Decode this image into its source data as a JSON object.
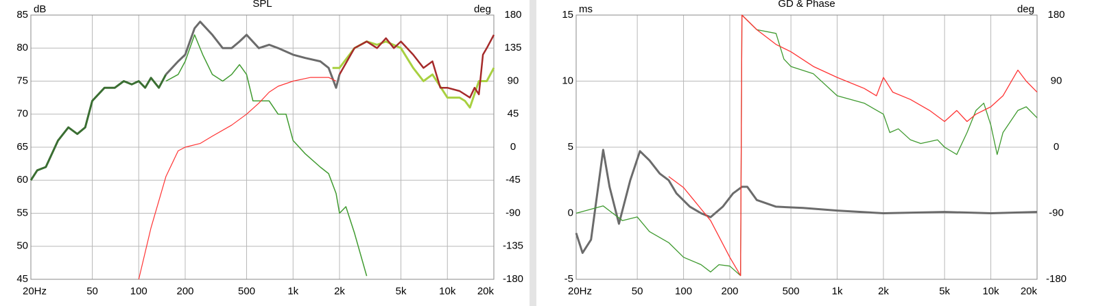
{
  "chart_data": [
    {
      "type": "line",
      "title": "SPL",
      "y_label": "dB",
      "y2_label": "deg",
      "x_log": true,
      "grid": true,
      "xlim": [
        20,
        20000
      ],
      "ylim": [
        45,
        85
      ],
      "y2lim": [
        -180,
        180
      ],
      "xticks": [
        {
          "value": 20,
          "label": "20Hz"
        },
        50,
        100,
        200,
        500,
        {
          "value": 1000,
          "label": "1k"
        },
        {
          "value": 2000,
          "label": "2k"
        },
        {
          "value": 5000,
          "label": "5k"
        },
        {
          "value": 10000,
          "label": "10k"
        },
        {
          "value": 20000,
          "label": "20k"
        }
      ],
      "yticks": [
        45,
        50,
        55,
        60,
        65,
        70,
        75,
        80,
        85
      ],
      "y2ticks": [
        -180,
        -135,
        -90,
        -45,
        0,
        45,
        90,
        135,
        180
      ],
      "series": [
        {
          "color": "#3f9a2f",
          "line_width": 1.5,
          "x": [
            150,
            180,
            200,
            230,
            260,
            300,
            350,
            400,
            450,
            500,
            550,
            700,
            800,
            900,
            1000,
            1200,
            1500,
            1700,
            1900,
            2000,
            2200,
            2500,
            3000
          ],
          "values": [
            75,
            76,
            78,
            82,
            79,
            76,
            75,
            76,
            77.5,
            76,
            72,
            72,
            70,
            70,
            66,
            64,
            62,
            61,
            58,
            55,
            56,
            52,
            45.5
          ]
        },
        {
          "color": "#3a6e32",
          "line_width": 3,
          "x": [
            20,
            22,
            25,
            30,
            35,
            40,
            45,
            50,
            60,
            70,
            80,
            90,
            100,
            110,
            120,
            135,
            150
          ],
          "values": [
            60,
            61.5,
            62,
            66,
            68,
            67,
            68,
            72,
            74,
            74,
            75,
            74.5,
            75,
            74,
            75.5,
            74,
            76
          ]
        },
        {
          "color": "#6b6b6b",
          "line_width": 3,
          "x": [
            150,
            180,
            200,
            230,
            250,
            300,
            350,
            400,
            450,
            500,
            600,
            700,
            800,
            1000,
            1200,
            1500,
            1700,
            1900,
            2000
          ],
          "values": [
            76,
            78,
            79,
            83,
            84,
            82,
            80,
            80,
            81,
            82,
            80,
            80.5,
            80,
            79,
            78.5,
            78,
            77,
            74,
            76
          ]
        },
        {
          "color": "#a8d040",
          "line_width": 3,
          "x": [
            1800,
            2000,
            2500,
            3000,
            3500,
            4000,
            5000,
            6000,
            7000,
            8000,
            10000,
            12000,
            13000,
            14000,
            16000,
            18000,
            20000
          ],
          "values": [
            77,
            77,
            80,
            81,
            80.5,
            81,
            80,
            77,
            75,
            76,
            72.5,
            72.5,
            72,
            71,
            75,
            75,
            77
          ]
        },
        {
          "color": "#a52a2a",
          "line_width": 2.5,
          "x": [
            2000,
            2500,
            3000,
            3500,
            4000,
            4500,
            5000,
            6000,
            7000,
            8000,
            9000,
            10000,
            12000,
            14000,
            15000,
            16000,
            17000,
            18000,
            20000
          ],
          "values": [
            76,
            80,
            81,
            80,
            81.5,
            80,
            81,
            79,
            77,
            78,
            74,
            74,
            73.5,
            72.5,
            74,
            73,
            79,
            80,
            82
          ]
        },
        {
          "color": "#ff3333",
          "line_width": 1.2,
          "axis": "y2",
          "x": [
            100,
            120,
            150,
            180,
            200,
            250,
            300,
            400,
            500,
            600,
            700,
            800,
            1000,
            1300,
            1700,
            1900
          ],
          "values": [
            -180,
            -110,
            -40,
            -5,
            0,
            5,
            15,
            30,
            45,
            60,
            75,
            83,
            90,
            95,
            95,
            90
          ]
        }
      ]
    },
    {
      "type": "line",
      "title": "GD & Phase",
      "y_label": "ms",
      "y2_label": "deg",
      "x_log": true,
      "grid": true,
      "xlim": [
        20,
        20000
      ],
      "ylim": [
        -5,
        15
      ],
      "y2lim": [
        -180,
        180
      ],
      "xticks": [
        {
          "value": 20,
          "label": "20Hz"
        },
        50,
        100,
        200,
        500,
        {
          "value": 1000,
          "label": "1k"
        },
        {
          "value": 2000,
          "label": "2k"
        },
        {
          "value": 5000,
          "label": "5k"
        },
        {
          "value": 10000,
          "label": "10k"
        },
        {
          "value": 20000,
          "label": "20k"
        }
      ],
      "yticks": [
        -5,
        0,
        5,
        10,
        15
      ],
      "y2ticks": [
        -180,
        -90,
        0,
        90,
        180
      ],
      "series": [
        {
          "color": "#6b6b6b",
          "line_width": 3,
          "x": [
            20,
            22,
            25,
            30,
            33,
            38,
            45,
            52,
            60,
            70,
            80,
            90,
            110,
            130,
            150,
            180,
            210,
            240,
            260,
            300,
            400,
            600,
            1000,
            2000,
            5000,
            10000,
            20000
          ],
          "values": [
            -1.5,
            -3,
            -2,
            4.8,
            2,
            -0.8,
            2.5,
            4.7,
            4,
            3,
            2.5,
            1.5,
            0.5,
            0,
            -0.3,
            0.5,
            1.5,
            2,
            2,
            1,
            0.5,
            0.4,
            0.2,
            0,
            0.1,
            0,
            0.1
          ]
        },
        {
          "color": "#3f9a2f",
          "line_width": 1.3,
          "axis": "y2",
          "x": [
            20,
            30,
            40,
            50,
            60,
            80,
            100,
            130,
            150,
            170,
            200,
            235,
            240,
            300,
            400,
            450,
            500,
            700,
            1000,
            1500,
            2000,
            2200,
            2500,
            3000,
            3500,
            4500,
            5000,
            6000,
            7000,
            8000,
            9000,
            10000,
            11000,
            12000,
            15000,
            17000,
            20000
          ],
          "values": [
            -90,
            -80,
            -100,
            -95,
            -115,
            -130,
            -150,
            -160,
            -170,
            -160,
            -162,
            -175,
            180,
            160,
            155,
            120,
            110,
            100,
            70,
            60,
            45,
            20,
            25,
            10,
            5,
            10,
            0,
            -10,
            20,
            50,
            60,
            30,
            -10,
            20,
            50,
            55,
            40
          ]
        },
        {
          "color": "#ff3333",
          "line_width": 1.3,
          "axis": "y2",
          "x": [
            80,
            100,
            150,
            200,
            235,
            240,
            300,
            400,
            500,
            700,
            1000,
            1500,
            1800,
            2000,
            2300,
            3000,
            4000,
            5000,
            6000,
            7000,
            8000,
            10000,
            12000,
            15000,
            17000,
            20000
          ],
          "values": [
            -40,
            -55,
            -100,
            -150,
            -175,
            180,
            160,
            140,
            130,
            110,
            95,
            80,
            70,
            95,
            75,
            65,
            50,
            35,
            50,
            35,
            45,
            55,
            70,
            105,
            90,
            75
          ]
        }
      ]
    }
  ]
}
